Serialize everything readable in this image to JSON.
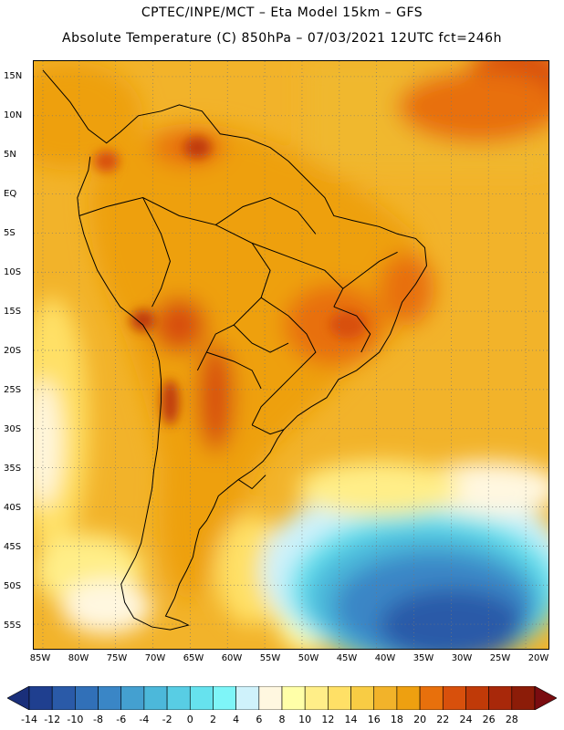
{
  "header": {
    "line1": "CPTEC/INPE/MCT –   Eta Model 15km – GFS",
    "line2": "Absolute Temperature (C) 850hPa – 07/03/2021 12UTC fct=246h"
  },
  "map": {
    "lat_ticks": [
      "15N",
      "10N",
      "5N",
      "EQ",
      "5S",
      "10S",
      "15S",
      "20S",
      "25S",
      "30S",
      "35S",
      "40S",
      "45S",
      "50S",
      "55S"
    ],
    "lon_ticks": [
      "85W",
      "80W",
      "75W",
      "70W",
      "65W",
      "60W",
      "55W",
      "50W",
      "45W",
      "40W",
      "35W",
      "30W",
      "25W",
      "20W"
    ]
  },
  "colorbar": {
    "labels": [
      "-14",
      "-12",
      "-10",
      "-8",
      "-6",
      "-4",
      "-2",
      "0",
      "2",
      "4",
      "6",
      "8",
      "10",
      "12",
      "14",
      "16",
      "18",
      "20",
      "22",
      "24",
      "26",
      "28"
    ],
    "colors": [
      "#1f3f8f",
      "#2a5aa8",
      "#3170b8",
      "#3a86c6",
      "#44a0d0",
      "#4cb8da",
      "#58cde4",
      "#66e2ee",
      "#7ef5f8",
      "#cff2fb",
      "#fff7e0",
      "#ffffa8",
      "#ffee88",
      "#ffe066",
      "#f8cc44",
      "#f2b32a",
      "#eea010",
      "#e8700c",
      "#d8500c",
      "#c03a08",
      "#a8280a",
      "#8c1c08"
    ],
    "low_arrow_color": "#1a2f7a",
    "high_arrow_color": "#7a0c10"
  }
}
